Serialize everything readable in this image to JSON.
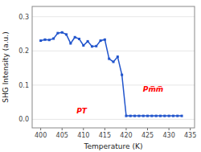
{
  "chart_data": {
    "type": "line",
    "x": [
      400,
      401,
      402,
      403,
      404,
      405,
      406,
      407,
      408,
      409,
      410,
      411,
      412,
      413,
      414,
      415,
      416,
      417,
      418,
      419,
      420,
      421,
      422,
      423,
      424,
      425,
      426,
      427,
      428,
      429,
      430,
      431,
      432,
      433
    ],
    "values": [
      0.23,
      0.233,
      0.232,
      0.236,
      0.252,
      0.254,
      0.248,
      0.222,
      0.24,
      0.235,
      0.216,
      0.228,
      0.213,
      0.214,
      0.23,
      0.233,
      0.177,
      0.168,
      0.183,
      0.13,
      0.01,
      0.01,
      0.01,
      0.01,
      0.01,
      0.01,
      0.01,
      0.01,
      0.01,
      0.01,
      0.01,
      0.01,
      0.01,
      0.01
    ],
    "color": "#2255cc",
    "marker": "square",
    "xlabel": "Temperature (K)",
    "ylabel": "SHG Intensity (a.u.)",
    "xlim": [
      398,
      436
    ],
    "ylim": [
      -0.025,
      0.33
    ],
    "xticks": [
      400,
      405,
      410,
      415,
      420,
      425,
      430,
      435
    ],
    "yticks": [
      {
        "value": 0.0,
        "label": "0.0"
      },
      0.1,
      0.2,
      0.3
    ],
    "annotations": [
      {
        "text": "PT",
        "color": "red"
      },
      {
        "text": "Pm̅m̅",
        "color": "red"
      }
    ]
  }
}
